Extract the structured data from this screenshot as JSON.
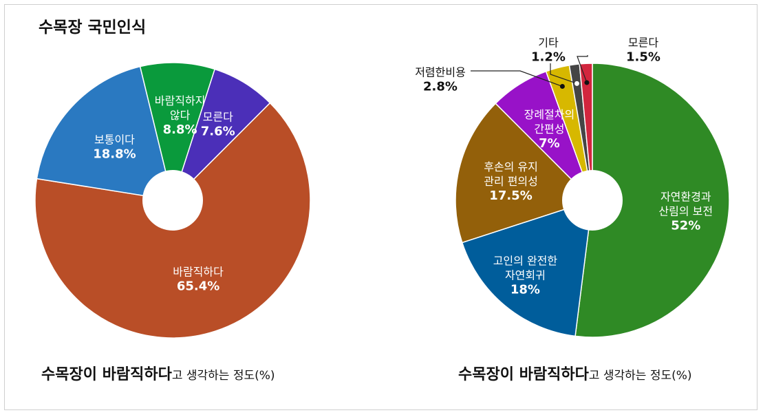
{
  "title": "수목장 국민인식",
  "captions": [
    {
      "strong": "수목장이  바람직하다",
      "rest": "고 생각하는 정도(%)"
    },
    {
      "strong": "수목장이  바람직하다",
      "rest": "고 생각하는 정도(%)"
    }
  ],
  "chart_data": [
    {
      "type": "pie",
      "slices": [
        {
          "label": [
            "바람직하다"
          ],
          "value_label": "65.4%",
          "value": 65.4,
          "color": "#b94e27"
        },
        {
          "label": [
            "보통이다"
          ],
          "value_label": "18.8%",
          "value": 18.8,
          "color": "#2a79c1"
        },
        {
          "label": [
            "바람직하지",
            "않다"
          ],
          "value_label": "8.8%",
          "value": 8.8,
          "color": "#0a9a3c"
        },
        {
          "label": [
            "모른다"
          ],
          "value_label": "7.6%",
          "value": 7.6,
          "color": "#4b2fb8"
        }
      ]
    },
    {
      "type": "pie",
      "slices": [
        {
          "label": [
            "자연환경과",
            "산림의 보전"
          ],
          "value_label": "52%",
          "value": 52,
          "color": "#2f8a25"
        },
        {
          "label": [
            "고인의 완전한",
            "자연회귀"
          ],
          "value_label": "18%",
          "value": 18,
          "color": "#005d9b"
        },
        {
          "label": [
            "후손의 유지",
            "관리 편의성"
          ],
          "value_label": "17.5%",
          "value": 17.5,
          "color": "#93600a"
        },
        {
          "label": [
            "장례절차의",
            "간편성"
          ],
          "value_label": "7%",
          "value": 7,
          "color": "#9812c8"
        },
        {
          "label": [
            "저렴한비용"
          ],
          "value_label": "2.8%",
          "value": 2.8,
          "color": "#d7b800"
        },
        {
          "label": [
            "기타"
          ],
          "value_label": "1.2%",
          "value": 1.2,
          "color": "#454545"
        },
        {
          "label": [
            "모른다"
          ],
          "value_label": "1.5%",
          "value": 1.5,
          "color": "#d2263e"
        }
      ]
    }
  ]
}
